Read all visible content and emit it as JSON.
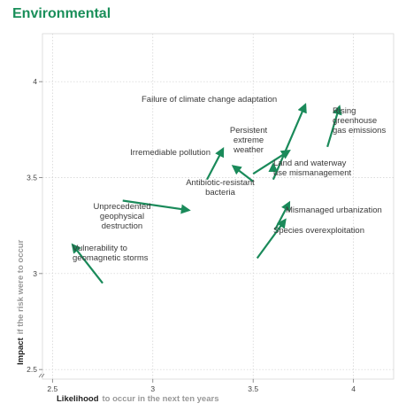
{
  "chart_data": {
    "type": "scatter",
    "title": "Environmental",
    "xlabel": {
      "bold": "Likelihood",
      "rest": "to occur in the next ten years"
    },
    "ylabel": {
      "bold": "Impact",
      "rest": "if the risk were to occur"
    },
    "xlim": [
      2.45,
      4.2
    ],
    "ylim": [
      2.45,
      4.25
    ],
    "xticks": [
      "2.5",
      "3",
      "3.5",
      "4"
    ],
    "yticks": [
      "2.5",
      "3",
      "3.5",
      "4"
    ],
    "grid": true,
    "color": "#1a8a5a",
    "risks": [
      {
        "label": "Failure of climate change adaptation",
        "from": [
          3.6,
          3.49
        ],
        "to": [
          3.76,
          3.88
        ]
      },
      {
        "label": "Rising greenhouse gas emissions",
        "from": [
          3.87,
          3.66
        ],
        "to": [
          3.93,
          3.87
        ]
      },
      {
        "label": "Persistent extreme weather",
        "from": [
          3.5,
          3.52
        ],
        "to": [
          3.68,
          3.64
        ]
      },
      {
        "label": "Irremediable pollution",
        "from": [
          3.27,
          3.49
        ],
        "to": [
          3.35,
          3.65
        ]
      },
      {
        "label": "Antibiotic-resistant bacteria",
        "from": [
          3.5,
          3.48
        ],
        "to": [
          3.4,
          3.56
        ]
      },
      {
        "label": "Land and waterway use mismanagement",
        "from": [
          3.6,
          3.53
        ],
        "to": [
          3.6,
          3.57
        ]
      },
      {
        "label": "Unprecedented geophysical destruction",
        "from": [
          2.85,
          3.38
        ],
        "to": [
          3.18,
          3.33
        ]
      },
      {
        "label": "Mismanaged urbanization",
        "from": [
          3.61,
          3.23
        ],
        "to": [
          3.68,
          3.37
        ]
      },
      {
        "label": "Species overexploitation",
        "from": [
          3.52,
          3.08
        ],
        "to": [
          3.66,
          3.28
        ]
      },
      {
        "label": "Vulnerability to geomagnetic storms",
        "from": [
          2.75,
          2.95
        ],
        "to": [
          2.6,
          3.15
        ]
      }
    ]
  }
}
